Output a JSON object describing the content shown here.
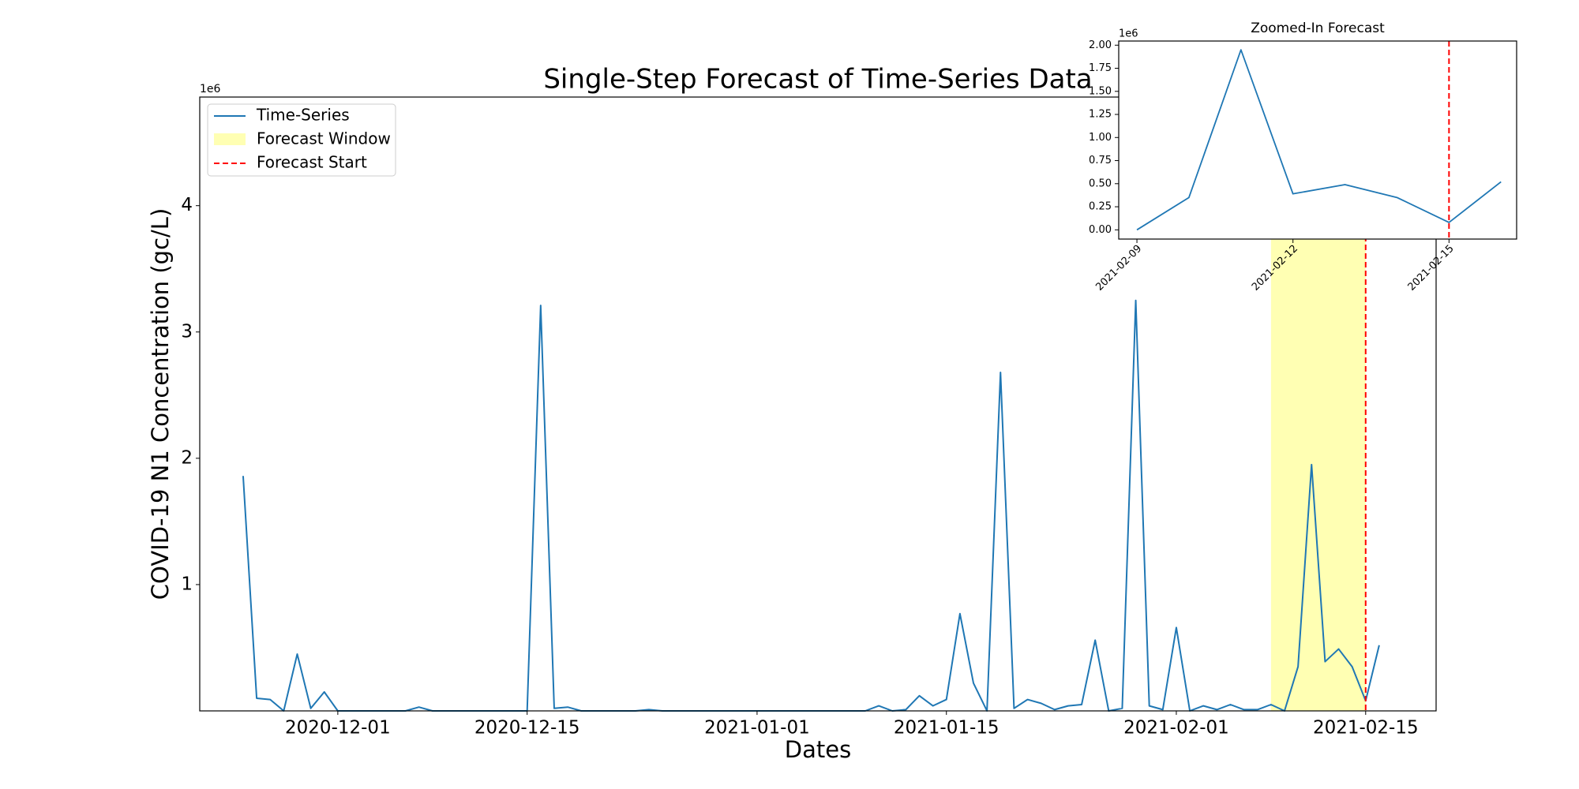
{
  "chart_data": [
    {
      "type": "line",
      "title": "Single-Step Forecast of Time-Series Data",
      "x_label": "Dates",
      "y_label": "COVID-19 N1 Concentration (gc/L)",
      "y_offset": "1e6",
      "x": [
        "2020-11-24",
        "2020-11-25",
        "2020-11-26",
        "2020-11-27",
        "2020-11-28",
        "2020-11-29",
        "2020-11-30",
        "2020-12-01",
        "2020-12-02",
        "2020-12-03",
        "2020-12-04",
        "2020-12-05",
        "2020-12-06",
        "2020-12-07",
        "2020-12-08",
        "2020-12-09",
        "2020-12-10",
        "2020-12-11",
        "2020-12-12",
        "2020-12-13",
        "2020-12-14",
        "2020-12-15",
        "2020-12-16",
        "2020-12-17",
        "2020-12-18",
        "2020-12-19",
        "2020-12-20",
        "2020-12-21",
        "2020-12-22",
        "2020-12-23",
        "2020-12-24",
        "2020-12-25",
        "2020-12-26",
        "2020-12-27",
        "2020-12-28",
        "2020-12-29",
        "2020-12-30",
        "2020-12-31",
        "2021-01-01",
        "2021-01-02",
        "2021-01-03",
        "2021-01-04",
        "2021-01-05",
        "2021-01-06",
        "2021-01-07",
        "2021-01-08",
        "2021-01-09",
        "2021-01-10",
        "2021-01-11",
        "2021-01-12",
        "2021-01-13",
        "2021-01-14",
        "2021-01-15",
        "2021-01-16",
        "2021-01-17",
        "2021-01-18",
        "2021-01-19",
        "2021-01-20",
        "2021-01-21",
        "2021-01-22",
        "2021-01-23",
        "2021-01-24",
        "2021-01-25",
        "2021-01-26",
        "2021-01-27",
        "2021-01-28",
        "2021-01-29",
        "2021-01-30",
        "2021-01-31",
        "2021-02-01",
        "2021-02-02",
        "2021-02-03",
        "2021-02-04",
        "2021-02-05",
        "2021-02-06",
        "2021-02-07",
        "2021-02-08",
        "2021-02-09",
        "2021-02-10",
        "2021-02-11",
        "2021-02-12",
        "2021-02-13",
        "2021-02-14",
        "2021-02-15",
        "2021-02-16"
      ],
      "series": [
        {
          "name": "Time-Series",
          "color": "#1f77b4",
          "values": [
            1860000,
            100000,
            90000,
            0,
            450000,
            20000,
            150000,
            0,
            0,
            0,
            0,
            0,
            0,
            30000,
            0,
            0,
            0,
            0,
            0,
            0,
            0,
            0,
            3210000,
            20000,
            30000,
            0,
            0,
            0,
            0,
            0,
            10000,
            0,
            0,
            0,
            0,
            0,
            0,
            0,
            0,
            0,
            0,
            0,
            0,
            0,
            0,
            0,
            0,
            40000,
            0,
            10000,
            120000,
            40000,
            90000,
            770000,
            220000,
            0,
            2680000,
            20000,
            90000,
            60000,
            10000,
            40000,
            50000,
            560000,
            0,
            20000,
            3250000,
            40000,
            10000,
            660000,
            0,
            40000,
            10000,
            50000,
            10000,
            10000,
            50000,
            0,
            350000,
            1950000,
            390000,
            490000,
            350000,
            80000,
            520000
          ]
        }
      ],
      "forecast_window": {
        "label": "Forecast Window",
        "start": "2021-02-08",
        "end": "2021-02-15",
        "color": "#ffffb3"
      },
      "forecast_start": {
        "label": "Forecast Start",
        "x": "2021-02-15",
        "color": "#ff0000"
      },
      "xlim": [
        "2020-11-20T19:00",
        "2021-02-20T05:00"
      ],
      "ylim": [
        0,
        4860000
      ],
      "xticks": [
        "2020-12-01",
        "2020-12-15",
        "2021-01-01",
        "2021-01-15",
        "2021-02-01",
        "2021-02-15"
      ],
      "yticks": [
        {
          "value": 1000000,
          "label": "1"
        },
        {
          "value": 2000000,
          "label": "2"
        },
        {
          "value": 3000000,
          "label": "3"
        },
        {
          "value": 4000000,
          "label": "4"
        }
      ],
      "legend": "upper left"
    },
    {
      "type": "line",
      "title": "Zoomed-In Forecast",
      "y_offset": "1e6",
      "x": [
        "2021-02-09",
        "2021-02-10",
        "2021-02-11",
        "2021-02-12",
        "2021-02-13",
        "2021-02-14",
        "2021-02-15",
        "2021-02-16"
      ],
      "series": [
        {
          "color": "#1f77b4",
          "values": [
            0,
            350000,
            1950000,
            390000,
            490000,
            350000,
            80000,
            520000
          ]
        }
      ],
      "forecast_start": {
        "x": "2021-02-15",
        "color": "#ff0000"
      },
      "xlim": [
        "2021-02-08T15:36",
        "2021-02-16T07:12"
      ],
      "ylim": [
        -100000,
        2045000
      ],
      "xticks": [
        "2021-02-09",
        "2021-02-12",
        "2021-02-15"
      ],
      "yticks": [
        {
          "value": 0,
          "label": "0.00"
        },
        {
          "value": 250000,
          "label": "0.25"
        },
        {
          "value": 500000,
          "label": "0.50"
        },
        {
          "value": 750000,
          "label": "0.75"
        },
        {
          "value": 1000000,
          "label": "1.00"
        },
        {
          "value": 1250000,
          "label": "1.25"
        },
        {
          "value": 1500000,
          "label": "1.50"
        },
        {
          "value": 1750000,
          "label": "1.75"
        },
        {
          "value": 2000000,
          "label": "2.00"
        }
      ]
    }
  ]
}
